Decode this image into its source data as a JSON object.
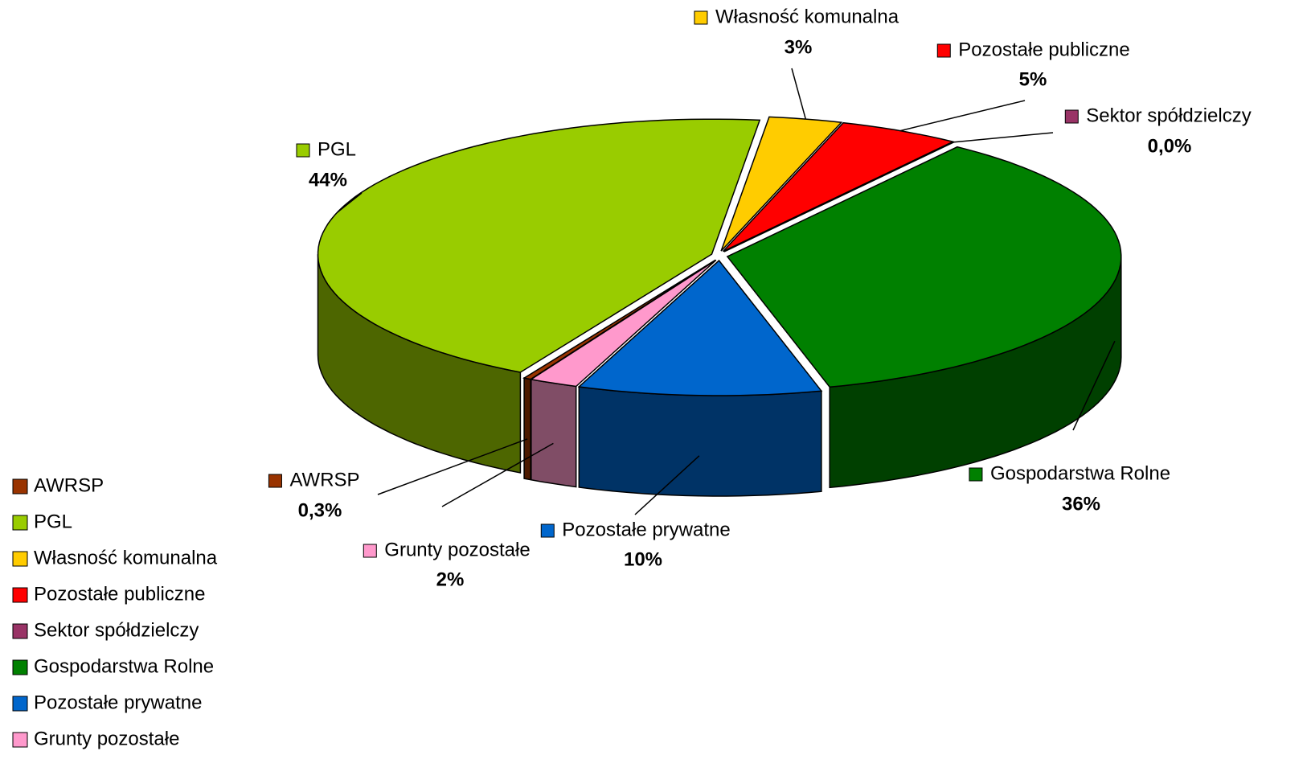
{
  "chart_data": {
    "type": "pie3d",
    "categories": [
      "AWRSP",
      "PGL",
      "Własność komunalna",
      "Pozostałe publiczne",
      "Sektor spółdzielczy",
      "Gospodarstwa Rolne",
      "Pozostałe prywatne",
      "Grunty pozostałe"
    ],
    "values": [
      0.3,
      44,
      3,
      5,
      0,
      36,
      10,
      2
    ],
    "value_labels": [
      "0,3%",
      "44%",
      "3%",
      "5%",
      "0,0%",
      "36%",
      "10%",
      "2%"
    ],
    "colors": [
      "#993300",
      "#99cc00",
      "#ffcc00",
      "#ff0000",
      "#993366",
      "#008000",
      "#0066cc",
      "#ff99cc"
    ],
    "legend": "left"
  }
}
